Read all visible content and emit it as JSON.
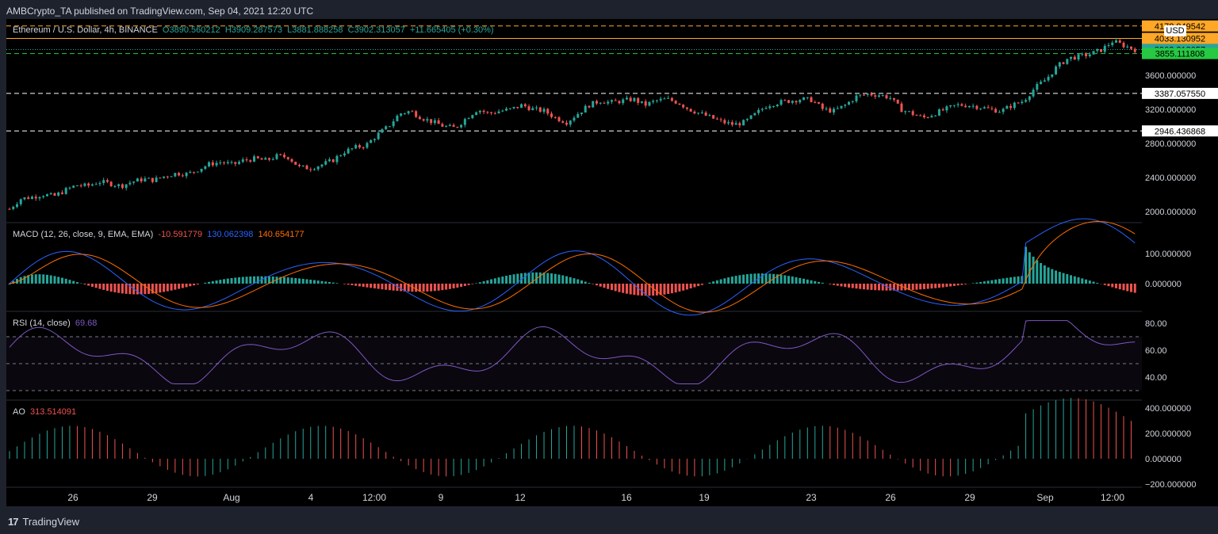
{
  "header": {
    "published": "AMBCrypto_TA published on TradingView.com, Sep 04, 2021 12:20 UTC"
  },
  "legend": {
    "symbol": "Ethereum / U.S. Dollar, 4h, BINANCE",
    "o_label": "O",
    "o": "3890.560212",
    "h_label": "H",
    "h": "3909.287573",
    "l_label": "L",
    "l": "3881.888258",
    "c_label": "C",
    "c": "3902.313057",
    "change": "+11.665405 (+0.30%)"
  },
  "macd_legend": {
    "name": "MACD (12, 26, close, 9, EMA, EMA)",
    "hist": "-10.591779",
    "macd": "130.062398",
    "signal": "140.654177"
  },
  "rsi_legend": {
    "name": "RSI (14, close)",
    "value": "69.68"
  },
  "ao_legend": {
    "name": "AO",
    "value": "313.514091"
  },
  "currency": "USD",
  "footer": {
    "brand": "TradingView",
    "logo": "17"
  },
  "colors": {
    "up": "#26a69a",
    "down": "#ef5350",
    "macd": "#2962ff",
    "signal": "#ff6d00",
    "rsi": "#7e57c2",
    "ao_up": "#26a69a",
    "ao_down": "#ef5350"
  },
  "chart_data": {
    "type": "candlestick",
    "x_ticks": [
      "26",
      "29",
      "Aug",
      "4",
      "12:00",
      "9",
      "12",
      "16",
      "19",
      "23",
      "26",
      "29",
      "Sep",
      "12:00"
    ],
    "price_axis": [
      "3600.000000",
      "3200.000000",
      "2800.000000",
      "2400.000000",
      "2000.000000"
    ],
    "price_lines": [
      {
        "value": "4178.949542",
        "color": "#ffa726",
        "style": "dashed"
      },
      {
        "value": "4033.130952",
        "color": "#ffa726",
        "style": "solid"
      },
      {
        "value": "3902.313057",
        "color": "#26a69a",
        "style": "dotted"
      },
      {
        "value": "3855.111808",
        "color": "#26c941",
        "style": "dashed"
      },
      {
        "value": "3387.057550",
        "color": "#ffffff",
        "style": "dashed"
      },
      {
        "value": "2946.436868",
        "color": "#ffffff",
        "style": "dashed"
      }
    ],
    "macd_axis": [
      "100.000000",
      "0.000000"
    ],
    "rsi_axis": [
      "80.00",
      "60.00",
      "40.00"
    ],
    "ao_axis": [
      "400.000000",
      "200.000000",
      "0.000000",
      "−200.000000"
    ],
    "close_path": [
      2030,
      2150,
      2170,
      2200,
      2180,
      2250,
      2310,
      2300,
      2350,
      2330,
      2300,
      2350,
      2380,
      2370,
      2420,
      2450,
      2440,
      2500,
      2560,
      2580,
      2550,
      2600,
      2620,
      2600,
      2650,
      2640,
      2520,
      2510,
      2550,
      2600,
      2700,
      2750,
      2780,
      2900,
      3000,
      3150,
      3180,
      3100,
      3050,
      3000,
      2980,
      3100,
      3200,
      3150,
      3180,
      3200,
      3250,
      3200,
      3180,
      3100,
      3050,
      3150,
      3250,
      3300,
      3280,
      3300,
      3320,
      3250,
      3300,
      3320,
      3280,
      3200,
      3150,
      3100,
      3050,
      3020,
      3050,
      3150,
      3250,
      3280,
      3300,
      3320,
      3310,
      3200,
      3180,
      3250,
      3350,
      3380,
      3370,
      3340,
      3200,
      3150,
      3100,
      3150,
      3200,
      3250,
      3250,
      3230,
      3200,
      3180,
      3250,
      3300,
      3450,
      3550,
      3700,
      3800,
      3820,
      3850,
      3900,
      4000,
      3950,
      3902
    ]
  }
}
